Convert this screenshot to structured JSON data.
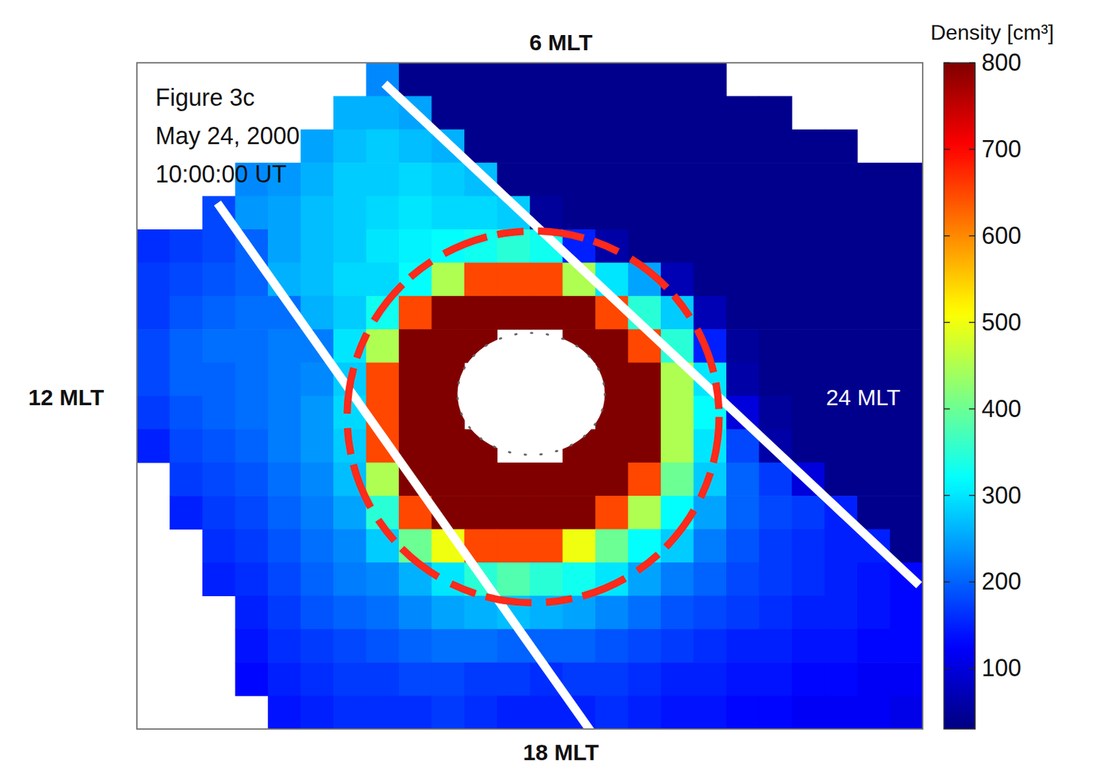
{
  "chart_data": {
    "type": "heatmap",
    "annotations": [
      "Figure 3c",
      "May 24, 2000",
      "10:00:00 UT"
    ],
    "mlt_labels": {
      "top": "6 MLT",
      "left": "12 MLT",
      "bottom": "18 MLT",
      "right": "24 MLT"
    },
    "colorbar": {
      "title": "Density [cm³]",
      "range": [
        30,
        800
      ],
      "ticks": [
        100,
        200,
        300,
        400,
        500,
        600,
        700,
        800
      ]
    },
    "cells": [
      [
        null,
        null,
        null,
        null,
        null,
        null,
        null,
        230,
        40,
        40,
        40,
        40,
        40,
        40,
        40,
        40,
        40,
        40,
        null,
        null,
        null,
        null,
        null,
        null
      ],
      [
        null,
        null,
        null,
        null,
        null,
        null,
        260,
        260,
        250,
        40,
        40,
        40,
        40,
        40,
        40,
        40,
        40,
        40,
        40,
        40,
        null,
        null,
        null,
        null
      ],
      [
        null,
        null,
        null,
        null,
        null,
        250,
        270,
        280,
        270,
        260,
        40,
        40,
        40,
        40,
        40,
        40,
        40,
        40,
        40,
        40,
        40,
        40,
        null,
        null
      ],
      [
        null,
        null,
        null,
        230,
        240,
        260,
        280,
        280,
        290,
        280,
        270,
        40,
        40,
        40,
        40,
        40,
        40,
        40,
        40,
        40,
        40,
        40,
        40,
        40
      ],
      [
        null,
        null,
        180,
        240,
        250,
        270,
        280,
        290,
        300,
        290,
        290,
        280,
        50,
        40,
        40,
        40,
        40,
        40,
        40,
        40,
        40,
        40,
        40,
        40
      ],
      [
        160,
        170,
        180,
        200,
        250,
        270,
        280,
        300,
        310,
        320,
        330,
        350,
        330,
        150,
        60,
        40,
        40,
        40,
        40,
        40,
        40,
        40,
        40,
        40
      ],
      [
        170,
        180,
        190,
        200,
        260,
        270,
        290,
        290,
        320,
        450,
        650,
        650,
        650,
        450,
        300,
        250,
        70,
        40,
        40,
        40,
        40,
        40,
        40,
        40
      ],
      [
        170,
        190,
        200,
        210,
        210,
        260,
        280,
        330,
        650,
        800,
        800,
        800,
        800,
        800,
        650,
        350,
        280,
        70,
        40,
        40,
        40,
        40,
        40,
        40
      ],
      [
        180,
        200,
        210,
        210,
        220,
        220,
        300,
        450,
        800,
        800,
        800,
        null,
        null,
        800,
        800,
        650,
        350,
        150,
        50,
        40,
        40,
        40,
        40,
        40
      ],
      [
        180,
        200,
        200,
        210,
        220,
        230,
        280,
        650,
        800,
        800,
        null,
        null,
        null,
        null,
        800,
        800,
        450,
        300,
        60,
        40,
        40,
        40,
        40,
        40
      ],
      [
        170,
        190,
        200,
        210,
        220,
        240,
        290,
        650,
        800,
        800,
        null,
        null,
        null,
        null,
        800,
        800,
        450,
        320,
        100,
        50,
        40,
        40,
        40,
        40
      ],
      [
        150,
        180,
        190,
        200,
        220,
        240,
        280,
        650,
        800,
        800,
        800,
        null,
        null,
        800,
        800,
        800,
        450,
        300,
        180,
        60,
        40,
        40,
        40,
        40
      ],
      [
        null,
        170,
        180,
        190,
        210,
        230,
        270,
        450,
        800,
        800,
        800,
        800,
        800,
        800,
        800,
        650,
        400,
        280,
        200,
        170,
        100,
        40,
        40,
        40
      ],
      [
        null,
        150,
        170,
        180,
        200,
        220,
        250,
        350,
        650,
        800,
        800,
        800,
        800,
        800,
        650,
        450,
        320,
        250,
        200,
        180,
        170,
        150,
        40,
        40
      ],
      [
        null,
        null,
        160,
        170,
        190,
        210,
        230,
        280,
        400,
        500,
        650,
        650,
        650,
        500,
        400,
        320,
        280,
        220,
        190,
        170,
        160,
        150,
        150,
        40
      ],
      [
        null,
        null,
        150,
        160,
        180,
        200,
        220,
        230,
        260,
        300,
        350,
        380,
        350,
        330,
        300,
        250,
        220,
        200,
        180,
        170,
        160,
        150,
        140,
        130
      ],
      [
        null,
        null,
        null,
        150,
        170,
        190,
        200,
        210,
        230,
        250,
        260,
        270,
        260,
        250,
        230,
        210,
        190,
        180,
        170,
        160,
        150,
        150,
        140,
        130
      ],
      [
        null,
        null,
        null,
        140,
        160,
        170,
        180,
        190,
        200,
        210,
        210,
        200,
        200,
        200,
        190,
        180,
        170,
        160,
        150,
        150,
        140,
        140,
        130,
        130
      ],
      [
        null,
        null,
        null,
        130,
        150,
        160,
        170,
        170,
        180,
        180,
        170,
        170,
        160,
        170,
        170,
        160,
        150,
        150,
        140,
        140,
        130,
        130,
        120,
        120
      ],
      [
        null,
        null,
        null,
        null,
        140,
        150,
        160,
        160,
        160,
        170,
        160,
        150,
        150,
        150,
        160,
        150,
        140,
        140,
        130,
        130,
        120,
        120,
        120,
        110
      ]
    ]
  }
}
